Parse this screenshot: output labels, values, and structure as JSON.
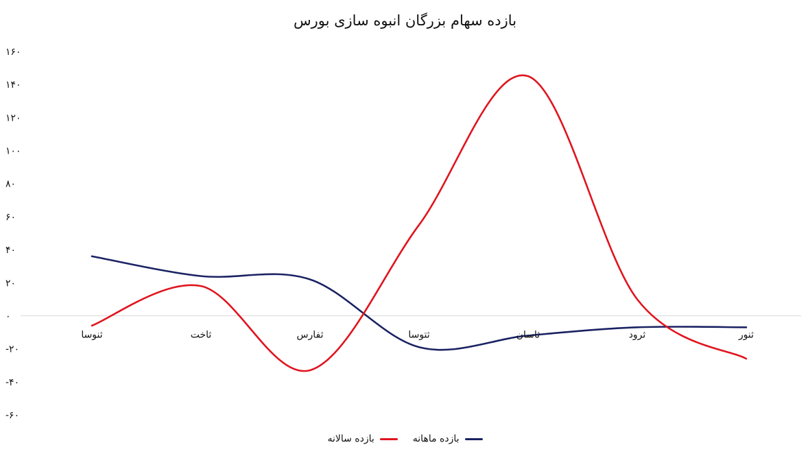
{
  "chart_data": {
    "type": "line",
    "title": "بازده سهام بزرگان انبوه سازی بورس",
    "categories": [
      "ثنوسا",
      "ثاخت",
      "ثفارس",
      "ثتوسا",
      "ثاسان",
      "ثرود",
      "ثنور"
    ],
    "y_tick_labels": [
      "۱۶۰",
      "۱۴۰",
      "۱۲۰",
      "۱۰۰",
      "۸۰",
      "۶۰",
      "۴۰",
      "۲۰",
      "۰",
      "-۲۰",
      "-۴۰",
      "-۶۰"
    ],
    "ylim": [
      -60,
      160
    ],
    "grid": false,
    "legend": "bottom",
    "series": [
      {
        "name": "بازده ماهانه",
        "color": "#1a2263",
        "values": [
          36,
          24,
          22,
          -19,
          -12,
          -7,
          -7
        ]
      },
      {
        "name": "بازده سالانه",
        "color": "#e0141e",
        "values": [
          -6,
          18,
          -33,
          55,
          145,
          10,
          -26
        ]
      }
    ]
  }
}
